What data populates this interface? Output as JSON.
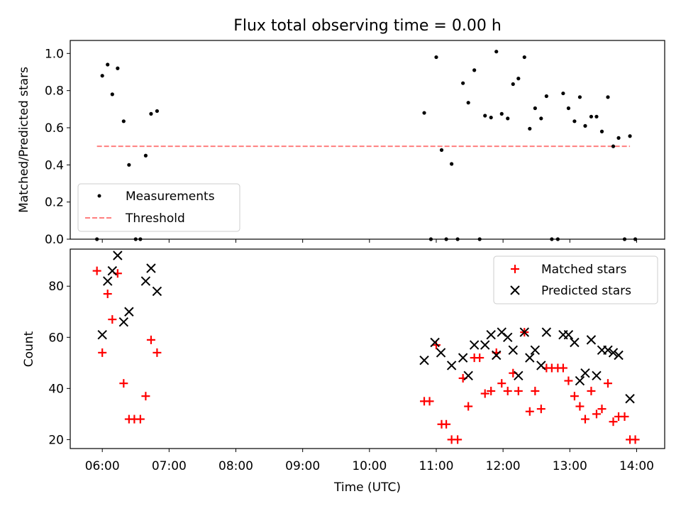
{
  "chart_data": [
    {
      "type": "scatter",
      "title": "Flux total observing time = 0.00 h",
      "xlabel": "",
      "ylabel": "Matched/Predicted stars",
      "xlim": [
        5.52,
        14.42
      ],
      "ylim": [
        0.0,
        1.07
      ],
      "yticks": [
        0.0,
        0.2,
        0.4,
        0.6,
        0.8,
        1.0
      ],
      "ytick_labels": [
        "0.0",
        "0.2",
        "0.4",
        "0.6",
        "0.8",
        "1.0"
      ],
      "legend_position": "lower-left",
      "series": [
        {
          "name": "Measurements",
          "marker": "dot",
          "color": "#000000",
          "x": [
            5.92,
            6.0,
            6.08,
            6.15,
            6.23,
            6.32,
            6.4,
            6.5,
            6.57,
            6.65,
            6.73,
            6.82,
            10.82,
            10.92,
            11.0,
            11.08,
            11.15,
            11.23,
            11.32,
            11.4,
            11.48,
            11.57,
            11.65,
            11.73,
            11.82,
            11.9,
            11.98,
            12.07,
            12.15,
            12.23,
            12.32,
            12.4,
            12.48,
            12.57,
            12.65,
            12.73,
            12.82,
            12.9,
            12.98,
            13.07,
            13.15,
            13.23,
            13.32,
            13.4,
            13.48,
            13.57,
            13.65,
            13.73,
            13.82,
            13.9,
            13.98
          ],
          "y": [
            0.0,
            0.88,
            0.94,
            0.78,
            0.92,
            0.635,
            0.4,
            0.0,
            0.0,
            0.45,
            0.675,
            0.69,
            0.68,
            0.0,
            0.98,
            0.48,
            0.0,
            0.405,
            0.0,
            0.84,
            0.735,
            0.91,
            0.0,
            0.665,
            0.655,
            1.01,
            0.675,
            0.65,
            0.835,
            0.865,
            0.98,
            0.595,
            0.705,
            0.65,
            0.77,
            0.0,
            0.0,
            0.785,
            0.705,
            0.635,
            0.765,
            0.61,
            0.66,
            0.66,
            0.58,
            0.765,
            0.5,
            0.545,
            0.0,
            0.555,
            0.0
          ]
        },
        {
          "name": "Threshold",
          "marker": "dashed-line",
          "color": "#ff7f7f",
          "x": [
            5.92,
            13.9
          ],
          "y": [
            0.5,
            0.5
          ]
        }
      ]
    },
    {
      "type": "scatter",
      "title": "",
      "xlabel": "Time (UTC)",
      "ylabel": "Count",
      "xlim": [
        5.52,
        14.42
      ],
      "ylim": [
        16.5,
        94.5
      ],
      "yticks": [
        20,
        40,
        60,
        80
      ],
      "ytick_labels": [
        "20",
        "40",
        "60",
        "80"
      ],
      "xticks": [
        6,
        7,
        8,
        9,
        10,
        11,
        12,
        13,
        14
      ],
      "xtick_labels": [
        "06:00",
        "07:00",
        "08:00",
        "09:00",
        "10:00",
        "11:00",
        "12:00",
        "13:00",
        "14:00"
      ],
      "legend_position": "top-right",
      "series": [
        {
          "name": "Matched stars",
          "marker": "plus",
          "color": "#ff0000",
          "x": [
            5.92,
            6.0,
            6.08,
            6.15,
            6.23,
            6.32,
            6.4,
            6.48,
            6.57,
            6.65,
            6.73,
            6.82,
            10.82,
            10.9,
            11.0,
            11.08,
            11.15,
            11.23,
            11.32,
            11.4,
            11.48,
            11.57,
            11.65,
            11.73,
            11.82,
            11.9,
            11.98,
            12.07,
            12.15,
            12.23,
            12.32,
            12.4,
            12.48,
            12.57,
            12.65,
            12.73,
            12.82,
            12.9,
            12.98,
            13.07,
            13.15,
            13.23,
            13.32,
            13.4,
            13.48,
            13.57,
            13.65,
            13.73,
            13.82,
            13.9,
            13.98
          ],
          "y": [
            86,
            54,
            77,
            67,
            85,
            42,
            28,
            28,
            28,
            37,
            59,
            54,
            35,
            35,
            57,
            26,
            26,
            20,
            20,
            44,
            33,
            52,
            52,
            38,
            39,
            54,
            42,
            39,
            46,
            39,
            62,
            31,
            39,
            32,
            48,
            48,
            48,
            48,
            43,
            37,
            33,
            28,
            39,
            30,
            32,
            42,
            27,
            29,
            29,
            20,
            20
          ]
        },
        {
          "name": "Predicted stars",
          "marker": "x",
          "color": "#000000",
          "x": [
            6.0,
            6.08,
            6.15,
            6.23,
            6.32,
            6.4,
            6.65,
            6.73,
            6.82,
            10.82,
            10.98,
            11.07,
            11.23,
            11.4,
            11.48,
            11.57,
            11.73,
            11.82,
            11.9,
            11.98,
            12.07,
            12.15,
            12.23,
            12.32,
            12.4,
            12.48,
            12.57,
            12.65,
            12.9,
            12.98,
            13.07,
            13.15,
            13.23,
            13.32,
            13.4,
            13.48,
            13.57,
            13.65,
            13.73,
            13.9
          ],
          "y": [
            61,
            82,
            86,
            92,
            66,
            70,
            82,
            87,
            78,
            51,
            58,
            54,
            49,
            52,
            45,
            57,
            57,
            61,
            53,
            62,
            60,
            55,
            45,
            62,
            52,
            55,
            49,
            62,
            61,
            61,
            58,
            43,
            46,
            59,
            45,
            55,
            55,
            54,
            53,
            36
          ]
        }
      ]
    }
  ]
}
